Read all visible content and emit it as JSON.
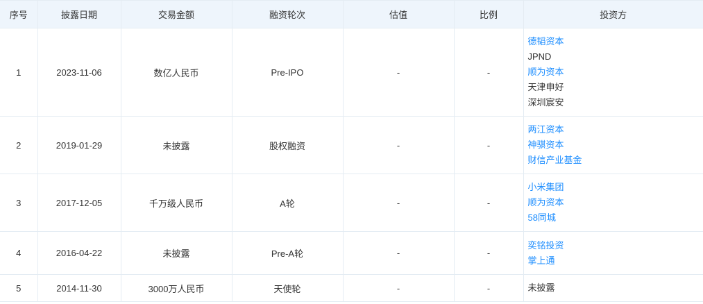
{
  "columns": [
    "序号",
    "披露日期",
    "交易金额",
    "融资轮次",
    "估值",
    "比例",
    "投资方"
  ],
  "rows": [
    {
      "no": "1",
      "date": "2023-11-06",
      "amount": "数亿人民币",
      "round": "Pre-IPO",
      "valuation": "-",
      "ratio": "-",
      "investors": [
        {
          "name": "德韬资本",
          "link": true
        },
        {
          "name": "JPND",
          "link": false
        },
        {
          "name": "顺为资本",
          "link": true
        },
        {
          "name": "天津申好",
          "link": false
        },
        {
          "name": "深圳宸安",
          "link": false
        }
      ]
    },
    {
      "no": "2",
      "date": "2019-01-29",
      "amount": "未披露",
      "round": "股权融资",
      "valuation": "-",
      "ratio": "-",
      "investors": [
        {
          "name": "两江资本",
          "link": true
        },
        {
          "name": "神骐资本",
          "link": true
        },
        {
          "name": "财信产业基金",
          "link": true
        }
      ]
    },
    {
      "no": "3",
      "date": "2017-12-05",
      "amount": "千万级人民币",
      "round": "A轮",
      "valuation": "-",
      "ratio": "-",
      "investors": [
        {
          "name": "小米集团",
          "link": true
        },
        {
          "name": "顺为资本",
          "link": true
        },
        {
          "name": "58同城",
          "link": true
        }
      ]
    },
    {
      "no": "4",
      "date": "2016-04-22",
      "amount": "未披露",
      "round": "Pre-A轮",
      "valuation": "-",
      "ratio": "-",
      "investors": [
        {
          "name": "奕铭投资",
          "link": true
        },
        {
          "name": "掌上通",
          "link": true
        }
      ]
    },
    {
      "no": "5",
      "date": "2014-11-30",
      "amount": "3000万人民币",
      "round": "天使轮",
      "valuation": "-",
      "ratio": "-",
      "investors": [
        {
          "name": "未披露",
          "link": false
        }
      ]
    }
  ],
  "colors": {
    "link": "#1a8cff",
    "header_bg": "#eef5fc",
    "border": "#e4ecf3"
  }
}
